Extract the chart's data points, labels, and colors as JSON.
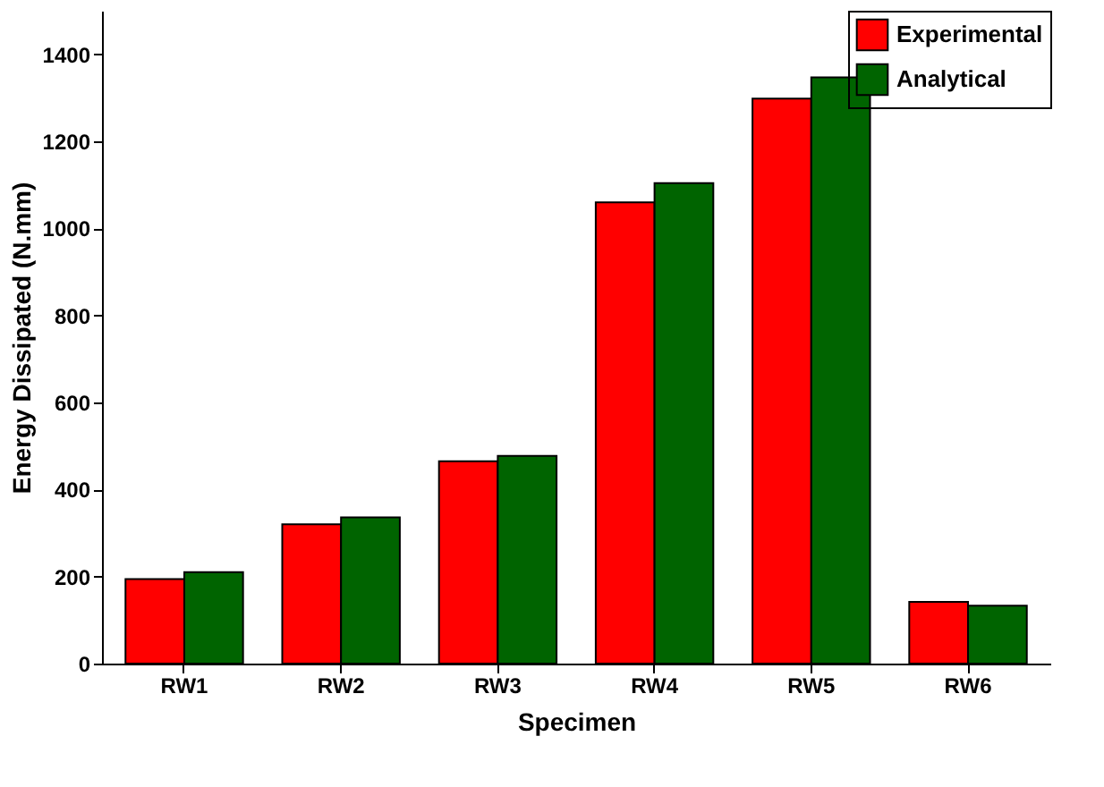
{
  "chart_data": {
    "type": "bar",
    "xlabel": "Specimen",
    "ylabel": "Energy Dissipated (N.mm)",
    "categories": [
      "RW1",
      "RW2",
      "RW3",
      "RW4",
      "RW5",
      "RW6"
    ],
    "series": [
      {
        "name": "Experimental",
        "color": "#ff0000",
        "values": [
          194,
          320,
          465,
          1060,
          1298,
          142
        ]
      },
      {
        "name": "Analytical",
        "color": "#006400",
        "values": [
          210,
          336,
          477,
          1104,
          1347,
          133
        ]
      }
    ],
    "ylim": [
      0,
      1500
    ],
    "yticks": [
      0,
      200,
      400,
      600,
      800,
      1000,
      1200,
      1400
    ],
    "grid": false,
    "legend": "top right"
  }
}
